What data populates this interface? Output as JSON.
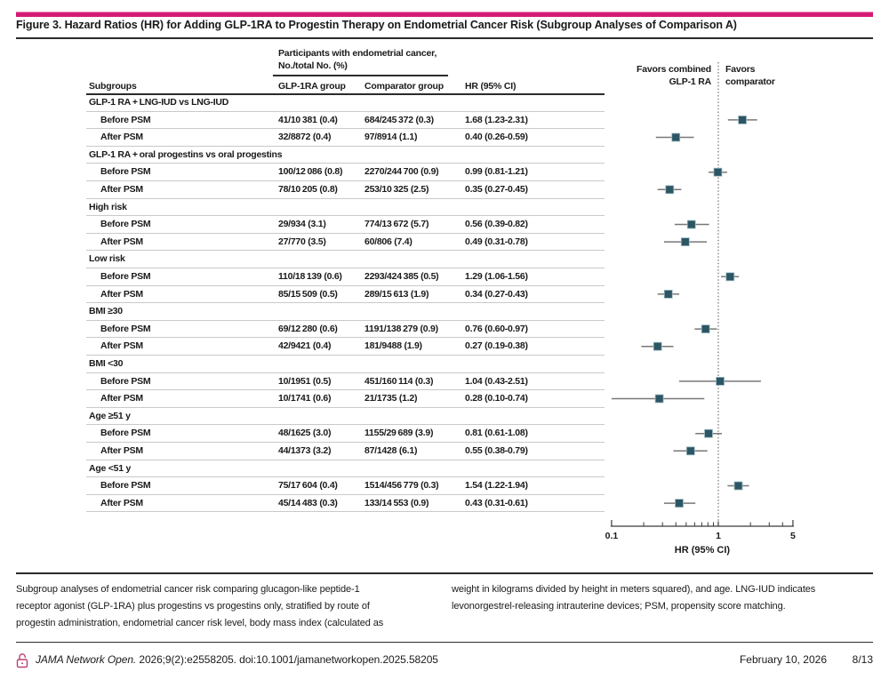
{
  "figure": {
    "title": "Figure 3. Hazard Ratios (HR) for Adding GLP-1RA to Progestin Therapy on Endometrial Cancer Risk (Subgroup Analyses of Comparison A)",
    "accent_color": "#d41a74",
    "marker_color": "#2c5664",
    "ci_line_color": "#787878",
    "ref_line_color": "#555555",
    "axis_color": "#3a3a3a"
  },
  "table": {
    "spanner_line1": "Participants with endometrial cancer,",
    "spanner_line2": "No./total No. (%)",
    "columns": [
      "Subgroups",
      "GLP-1RA group",
      "Comparator group",
      "HR (95% CI)"
    ],
    "favors_left": [
      "Favors combined",
      "GLP-1 RA"
    ],
    "favors_right": [
      "Favors",
      "comparator"
    ]
  },
  "chart_data": {
    "type": "forest",
    "x_scale": "log",
    "xlim": [
      0.1,
      5
    ],
    "xlabel": "HR (95% CI)",
    "x_ticks_labeled": [
      0.1,
      1,
      5
    ],
    "x_ticks_minor": [
      0.2,
      0.3,
      0.4,
      0.5,
      0.6,
      0.7,
      0.8,
      0.9,
      2,
      3,
      4
    ],
    "reference_line": 1,
    "groups": [
      {
        "label": "GLP-1 RA + LNG-IUD vs LNG-IUD",
        "rows": [
          {
            "label": "Before PSM",
            "glp1ra": "41/10 381 (0.4)",
            "comparator": "684/245 372 (0.3)",
            "hr_text": "1.68 (1.23-2.31)",
            "hr": 1.68,
            "lo": 1.23,
            "hi": 2.31
          },
          {
            "label": "After PSM",
            "glp1ra": "32/8872 (0.4)",
            "comparator": "97/8914 (1.1)",
            "hr_text": "0.40 (0.26-0.59)",
            "hr": 0.4,
            "lo": 0.26,
            "hi": 0.59
          }
        ]
      },
      {
        "label": "GLP-1 RA + oral progestins vs oral progestins",
        "rows": [
          {
            "label": "Before PSM",
            "glp1ra": "100/12 086 (0.8)",
            "comparator": "2270/244 700 (0.9)",
            "hr_text": "0.99 (0.81-1.21)",
            "hr": 0.99,
            "lo": 0.81,
            "hi": 1.21
          },
          {
            "label": "After PSM",
            "glp1ra": "78/10 205 (0.8)",
            "comparator": "253/10 325 (2.5)",
            "hr_text": "0.35 (0.27-0.45)",
            "hr": 0.35,
            "lo": 0.27,
            "hi": 0.45
          }
        ]
      },
      {
        "label": "High risk",
        "rows": [
          {
            "label": "Before PSM",
            "glp1ra": "29/934 (3.1)",
            "comparator": "774/13 672 (5.7)",
            "hr_text": "0.56 (0.39-0.82)",
            "hr": 0.56,
            "lo": 0.39,
            "hi": 0.82
          },
          {
            "label": "After PSM",
            "glp1ra": "27/770 (3.5)",
            "comparator": "60/806 (7.4)",
            "hr_text": "0.49 (0.31-0.78)",
            "hr": 0.49,
            "lo": 0.31,
            "hi": 0.78
          }
        ]
      },
      {
        "label": "Low risk",
        "rows": [
          {
            "label": "Before PSM",
            "glp1ra": "110/18 139 (0.6)",
            "comparator": "2293/424 385 (0.5)",
            "hr_text": "1.29 (1.06-1.56)",
            "hr": 1.29,
            "lo": 1.06,
            "hi": 1.56
          },
          {
            "label": "After PSM",
            "glp1ra": "85/15 509 (0.5)",
            "comparator": "289/15 613 (1.9)",
            "hr_text": "0.34 (0.27-0.43)",
            "hr": 0.34,
            "lo": 0.27,
            "hi": 0.43
          }
        ]
      },
      {
        "label": "BMI ≥30",
        "rows": [
          {
            "label": "Before PSM",
            "glp1ra": "69/12 280 (0.6)",
            "comparator": "1191/138 279 (0.9)",
            "hr_text": "0.76 (0.60-0.97)",
            "hr": 0.76,
            "lo": 0.6,
            "hi": 0.97
          },
          {
            "label": "After PSM",
            "glp1ra": "42/9421 (0.4)",
            "comparator": "181/9488 (1.9)",
            "hr_text": "0.27 (0.19-0.38)",
            "hr": 0.27,
            "lo": 0.19,
            "hi": 0.38
          }
        ]
      },
      {
        "label": "BMI <30",
        "rows": [
          {
            "label": "Before PSM",
            "glp1ra": "10/1951 (0.5)",
            "comparator": "451/160 114 (0.3)",
            "hr_text": "1.04 (0.43-2.51)",
            "hr": 1.04,
            "lo": 0.43,
            "hi": 2.51
          },
          {
            "label": "After PSM",
            "glp1ra": "10/1741 (0.6)",
            "comparator": "21/1735 (1.2)",
            "hr_text": "0.28 (0.10-0.74)",
            "hr": 0.28,
            "lo": 0.1,
            "hi": 0.74
          }
        ]
      },
      {
        "label": "Age ≥51 y",
        "rows": [
          {
            "label": "Before PSM",
            "glp1ra": "48/1625 (3.0)",
            "comparator": "1155/29 689 (3.9)",
            "hr_text": "0.81 (0.61-1.08)",
            "hr": 0.81,
            "lo": 0.61,
            "hi": 1.08
          },
          {
            "label": "After PSM",
            "glp1ra": "44/1373 (3.2)",
            "comparator": "87/1428 (6.1)",
            "hr_text": "0.55 (0.38-0.79)",
            "hr": 0.55,
            "lo": 0.38,
            "hi": 0.79
          }
        ]
      },
      {
        "label": "Age <51 y",
        "rows": [
          {
            "label": "Before PSM",
            "glp1ra": "75/17 604 (0.4)",
            "comparator": "1514/456 779 (0.3)",
            "hr_text": "1.54 (1.22-1.94)",
            "hr": 1.54,
            "lo": 1.22,
            "hi": 1.94
          },
          {
            "label": "After PSM",
            "glp1ra": "45/14 483 (0.3)",
            "comparator": "133/14 553 (0.9)",
            "hr_text": "0.43 (0.31-0.61)",
            "hr": 0.43,
            "lo": 0.31,
            "hi": 0.61
          }
        ]
      }
    ]
  },
  "caption": {
    "left": "Subgroup analyses of endometrial cancer risk comparing glucagon-like peptide-1\nreceptor agonist (GLP-1RA) plus progestins vs progestins only, stratified by route of\nprogestin administration, endometrial cancer risk level, body mass index (calculated as",
    "right": "weight in kilograms divided by height in meters squared), and age. LNG-IUD indicates\nlevonorgestrel-releasing intrauterine devices; PSM, propensity score matching."
  },
  "footer": {
    "journal": "JAMA Network Open.",
    "citation": " 2026;9(2):e2558205. doi:10.1001/jamanetworkopen.2025.58205",
    "date": "February 10, 2026",
    "page": "8/13"
  }
}
